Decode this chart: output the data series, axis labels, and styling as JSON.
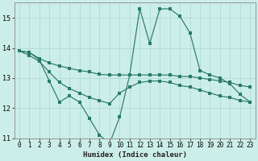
{
  "xlabel": "Humidex (Indice chaleur)",
  "bg_color": "#cceee8",
  "line_color": "#2a7a6a",
  "grid_color": "#aad8d0",
  "xlim": [
    -0.5,
    23.5
  ],
  "ylim": [
    11,
    15.5
  ],
  "yticks": [
    11,
    12,
    13,
    14,
    15
  ],
  "xticks": [
    0,
    1,
    2,
    3,
    4,
    5,
    6,
    7,
    8,
    9,
    10,
    11,
    12,
    13,
    14,
    15,
    16,
    17,
    18,
    19,
    20,
    21,
    22,
    23
  ],
  "series1_x": [
    0,
    1,
    2,
    3,
    4,
    5,
    6,
    7,
    8,
    9,
    10,
    11,
    12,
    13,
    14,
    15,
    16,
    17,
    18,
    19,
    20,
    21,
    22,
    23
  ],
  "series1_y": [
    13.9,
    13.85,
    13.65,
    13.5,
    13.4,
    13.32,
    13.25,
    13.2,
    13.12,
    13.1,
    13.1,
    13.1,
    13.1,
    13.1,
    13.1,
    13.1,
    13.05,
    13.05,
    13.0,
    12.95,
    12.9,
    12.85,
    12.75,
    12.7
  ],
  "series2_x": [
    0,
    1,
    2,
    3,
    4,
    5,
    6,
    7,
    8,
    9,
    10,
    11,
    12,
    13,
    14,
    15,
    16,
    17,
    18,
    19,
    20,
    21,
    22,
    23
  ],
  "series2_y": [
    13.9,
    13.75,
    13.55,
    13.2,
    12.85,
    12.65,
    12.5,
    12.35,
    12.25,
    12.15,
    12.5,
    12.7,
    12.85,
    12.9,
    12.9,
    12.85,
    12.75,
    12.7,
    12.6,
    12.5,
    12.4,
    12.35,
    12.25,
    12.2
  ],
  "series3_x": [
    0,
    1,
    2,
    3,
    4,
    5,
    6,
    7,
    8,
    9,
    10,
    11,
    12,
    13,
    14,
    15,
    16,
    17,
    18,
    19,
    20,
    21,
    22,
    23
  ],
  "series3_y": [
    13.9,
    13.85,
    13.6,
    12.9,
    12.2,
    12.4,
    12.2,
    11.65,
    11.1,
    10.82,
    11.7,
    13.1,
    15.3,
    14.15,
    15.3,
    15.3,
    15.05,
    14.5,
    13.25,
    13.1,
    13.0,
    12.8,
    12.45,
    12.2
  ]
}
